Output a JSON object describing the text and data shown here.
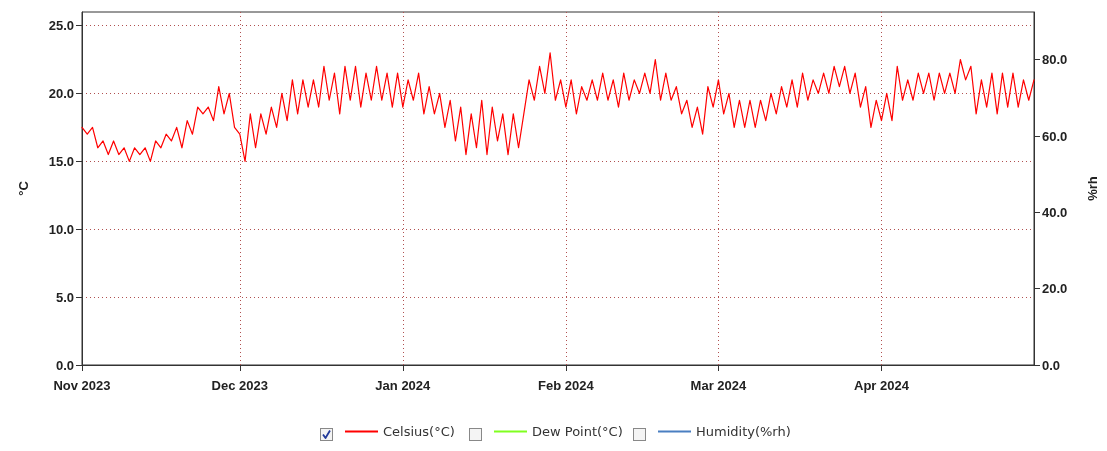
{
  "chart_data": {
    "type": "line",
    "ylabel": "°C",
    "y2label": "%rh",
    "x": [
      "2023-11-01",
      "2023-11-02",
      "2023-11-03",
      "2023-11-04",
      "2023-11-05",
      "2023-11-06",
      "2023-11-07",
      "2023-11-08",
      "2023-11-09",
      "2023-11-10",
      "2023-11-11",
      "2023-11-12",
      "2023-11-13",
      "2023-11-14",
      "2023-11-15",
      "2023-11-16",
      "2023-11-17",
      "2023-11-18",
      "2023-11-19",
      "2023-11-20",
      "2023-11-21",
      "2023-11-22",
      "2023-11-23",
      "2023-11-24",
      "2023-11-25",
      "2023-11-26",
      "2023-11-27",
      "2023-11-28",
      "2023-11-29",
      "2023-11-30",
      "2023-12-01",
      "2023-12-02",
      "2023-12-03",
      "2023-12-04",
      "2023-12-05",
      "2023-12-06",
      "2023-12-07",
      "2023-12-08",
      "2023-12-09",
      "2023-12-10",
      "2023-12-11",
      "2023-12-12",
      "2023-12-13",
      "2023-12-14",
      "2023-12-15",
      "2023-12-16",
      "2023-12-17",
      "2023-12-18",
      "2023-12-19",
      "2023-12-20",
      "2023-12-21",
      "2023-12-22",
      "2023-12-23",
      "2023-12-24",
      "2023-12-25",
      "2023-12-26",
      "2023-12-27",
      "2023-12-28",
      "2023-12-29",
      "2023-12-30",
      "2023-12-31",
      "2024-01-01",
      "2024-01-02",
      "2024-01-03",
      "2024-01-04",
      "2024-01-05",
      "2024-01-06",
      "2024-01-07",
      "2024-01-08",
      "2024-01-09",
      "2024-01-10",
      "2024-01-11",
      "2024-01-12",
      "2024-01-13",
      "2024-01-14",
      "2024-01-15",
      "2024-01-16",
      "2024-01-17",
      "2024-01-18",
      "2024-01-19",
      "2024-01-20",
      "2024-01-21",
      "2024-01-22",
      "2024-01-23",
      "2024-01-24",
      "2024-01-25",
      "2024-01-26",
      "2024-01-27",
      "2024-01-28",
      "2024-01-29",
      "2024-01-30",
      "2024-01-31",
      "2024-02-01",
      "2024-02-02",
      "2024-02-03",
      "2024-02-04",
      "2024-02-05",
      "2024-02-06",
      "2024-02-07",
      "2024-02-08",
      "2024-02-09",
      "2024-02-10",
      "2024-02-11",
      "2024-02-12",
      "2024-02-13",
      "2024-02-14",
      "2024-02-15",
      "2024-02-16",
      "2024-02-17",
      "2024-02-18",
      "2024-02-19",
      "2024-02-20",
      "2024-02-21",
      "2024-02-22",
      "2024-02-23",
      "2024-02-24",
      "2024-02-25",
      "2024-02-26",
      "2024-02-27",
      "2024-02-28",
      "2024-02-29",
      "2024-03-01",
      "2024-03-02",
      "2024-03-03",
      "2024-03-04",
      "2024-03-05",
      "2024-03-06",
      "2024-03-07",
      "2024-03-08",
      "2024-03-09",
      "2024-03-10",
      "2024-03-11",
      "2024-03-12",
      "2024-03-13",
      "2024-03-14",
      "2024-03-15",
      "2024-03-16",
      "2024-03-17",
      "2024-03-18",
      "2024-03-19",
      "2024-03-20",
      "2024-03-21",
      "2024-03-22",
      "2024-03-23",
      "2024-03-24",
      "2024-03-25",
      "2024-03-26",
      "2024-03-27",
      "2024-03-28",
      "2024-03-29",
      "2024-03-30",
      "2024-03-31",
      "2024-04-01",
      "2024-04-02",
      "2024-04-03",
      "2024-04-04",
      "2024-04-05",
      "2024-04-06",
      "2024-04-07",
      "2024-04-08",
      "2024-04-09",
      "2024-04-10",
      "2024-04-11",
      "2024-04-12",
      "2024-04-13",
      "2024-04-14",
      "2024-04-15",
      "2024-04-16",
      "2024-04-17",
      "2024-04-18",
      "2024-04-19",
      "2024-04-20",
      "2024-04-21",
      "2024-04-22",
      "2024-04-23",
      "2024-04-24",
      "2024-04-25",
      "2024-04-26",
      "2024-04-27",
      "2024-04-28",
      "2024-04-29",
      "2024-04-30"
    ],
    "series": [
      {
        "name": "Celsius(°C)",
        "color": "#ff0000",
        "values": [
          17.5,
          17,
          17.5,
          16,
          16.5,
          15.5,
          16.5,
          15.5,
          16,
          15,
          16,
          15.5,
          16,
          15,
          16.5,
          16,
          17,
          16.5,
          17.5,
          16,
          18,
          17,
          19,
          18.5,
          19,
          18,
          20.5,
          18.5,
          20,
          17.5,
          17,
          15,
          18.5,
          16,
          18.5,
          17,
          19,
          17.5,
          20,
          18,
          21,
          18.5,
          21,
          19,
          21,
          19,
          22,
          19.5,
          21.5,
          18.5,
          22,
          19.5,
          22,
          19,
          21.5,
          19.5,
          22,
          19.5,
          21.5,
          19,
          21.5,
          19,
          21,
          19.5,
          21.5,
          18.5,
          20.5,
          18.5,
          20,
          17.5,
          19.5,
          16.5,
          19,
          15.5,
          18.5,
          16,
          19.5,
          15.5,
          19,
          16.5,
          18.5,
          15.5,
          18.5,
          16,
          18.5,
          21,
          19.5,
          22,
          20,
          23,
          19.5,
          21,
          19,
          21,
          18.5,
          20.5,
          19.5,
          21,
          19.5,
          21.5,
          19.5,
          21,
          19,
          21.5,
          19.5,
          21,
          20,
          21.5,
          20,
          22.5,
          19.5,
          21.5,
          19.5,
          20.5,
          18.5,
          19.5,
          17.5,
          19,
          17,
          20.5,
          19,
          21,
          18.5,
          20,
          17.5,
          19.5,
          17.5,
          19.5,
          17.5,
          19.5,
          18,
          20,
          18.5,
          20.5,
          19,
          21,
          19,
          21.5,
          19.5,
          21,
          20,
          21.5,
          20,
          22,
          20.5,
          22,
          20,
          21.5,
          19,
          20.5,
          17.5,
          19.5,
          18,
          20,
          18,
          22,
          19.5,
          21,
          19.5,
          21.5,
          20,
          21.5,
          19.5,
          21.5,
          20,
          21.5,
          20,
          22.5,
          21,
          22,
          18.5,
          21,
          19,
          21.5,
          18.5,
          21.5,
          19,
          21.5,
          19,
          21,
          19.5,
          21
        ]
      },
      {
        "name": "Dew Point(°C)",
        "color": "#80ff20",
        "values": [
          null,
          null,
          null,
          null,
          null,
          null,
          null,
          null,
          null,
          null,
          null,
          null,
          null,
          null,
          null,
          null,
          null,
          null,
          null,
          null,
          null,
          null,
          null,
          null,
          null,
          null,
          null,
          null,
          null,
          null,
          null,
          null,
          null,
          null,
          null,
          null,
          null,
          null,
          null,
          null,
          null,
          null,
          null,
          null,
          null,
          null,
          null,
          null,
          null,
          null,
          null,
          null,
          null,
          null,
          null,
          null,
          null,
          null,
          null,
          null,
          null,
          null,
          null,
          null,
          null,
          null,
          null,
          null,
          null,
          null,
          null,
          null,
          null,
          null,
          null,
          null,
          null,
          null,
          null,
          null,
          null,
          null,
          null,
          null,
          null,
          null,
          null,
          null,
          null,
          null,
          null,
          null,
          null,
          null,
          null,
          null,
          null,
          null,
          null,
          null,
          null,
          null,
          null,
          null,
          null,
          null,
          null,
          null,
          null,
          null,
          null,
          null,
          null,
          null,
          null,
          null,
          null,
          null,
          null,
          null,
          null,
          null,
          null,
          null,
          null,
          null,
          null,
          null,
          null,
          null,
          null,
          null,
          null,
          null,
          null,
          null,
          null,
          null,
          null,
          null,
          null,
          null,
          null,
          null,
          null,
          null,
          null,
          null,
          null,
          null,
          null,
          null,
          null,
          null,
          null,
          null,
          null,
          null,
          null,
          null,
          null,
          null,
          null,
          null,
          null,
          null,
          null,
          null,
          null,
          null,
          null,
          null,
          null,
          null,
          null,
          null,
          null,
          null,
          null,
          null,
          null,
          null
        ]
      },
      {
        "name": "Humidity(%rh)",
        "color": "#4a7fc1",
        "values": [
          null,
          null,
          null,
          null,
          null,
          null,
          null,
          null,
          null,
          null,
          null,
          null,
          null,
          null,
          null,
          null,
          null,
          null,
          null,
          null,
          null,
          null,
          null,
          null,
          null,
          null,
          null,
          null,
          null,
          null,
          null,
          null,
          null,
          null,
          null,
          null,
          null,
          null,
          null,
          null,
          null,
          null,
          null,
          null,
          null,
          null,
          null,
          null,
          null,
          null,
          null,
          null,
          null,
          null,
          null,
          null,
          null,
          null,
          null,
          null,
          null,
          null,
          null,
          null,
          null,
          null,
          null,
          null,
          null,
          null,
          null,
          null,
          null,
          null,
          null,
          null,
          null,
          null,
          null,
          null,
          null,
          null,
          null,
          null,
          null,
          null,
          null,
          null,
          null,
          null,
          null,
          null,
          null,
          null,
          null,
          null,
          null,
          null,
          null,
          null,
          null,
          null,
          null,
          null,
          null,
          null,
          null,
          null,
          null,
          null,
          null,
          null,
          null,
          null,
          null,
          null,
          null,
          null,
          null,
          null,
          null,
          null,
          null,
          null,
          null,
          null,
          null,
          null,
          null,
          null,
          null,
          null,
          null,
          null,
          null,
          null,
          null,
          null,
          null,
          null,
          null,
          null,
          null,
          null,
          null,
          null,
          null,
          null,
          null,
          null,
          null,
          null,
          null,
          null,
          null,
          null,
          null,
          null,
          null,
          null,
          null,
          null,
          null,
          null,
          null,
          null,
          null,
          null,
          null,
          null,
          null,
          null,
          null,
          null,
          null,
          null,
          null,
          null,
          null,
          null,
          null,
          null
        ]
      }
    ],
    "xlim": [
      "2023-11-01",
      "2024-04-30"
    ],
    "xticks": [
      {
        "value": "2023-11-01",
        "label": "Nov 2023"
      },
      {
        "value": "2023-12-01",
        "label": "Dec 2023"
      },
      {
        "value": "2024-01-01",
        "label": "Jan 2024"
      },
      {
        "value": "2024-02-01",
        "label": "Feb 2024"
      },
      {
        "value": "2024-03-01",
        "label": "Mar 2024"
      },
      {
        "value": "2024-04-01",
        "label": "Apr 2024"
      }
    ],
    "ylim": [
      0,
      26
    ],
    "yticks": [
      {
        "value": 0,
        "label": "0.0"
      },
      {
        "value": 5,
        "label": "5.0"
      },
      {
        "value": 10,
        "label": "10.0"
      },
      {
        "value": 15,
        "label": "15.0"
      },
      {
        "value": 20,
        "label": "20.0"
      },
      {
        "value": 25,
        "label": "25.0"
      }
    ],
    "y2lim": [
      0,
      92.5
    ],
    "y2ticks": [
      {
        "value": 0,
        "label": "0.0"
      },
      {
        "value": 20,
        "label": "20.0"
      },
      {
        "value": 40,
        "label": "40.0"
      },
      {
        "value": 60,
        "label": "60.0"
      },
      {
        "value": 80,
        "label": "80.0"
      }
    ],
    "grid": true,
    "legend": "bottom",
    "marker": "none",
    "line_style": "solid"
  }
}
